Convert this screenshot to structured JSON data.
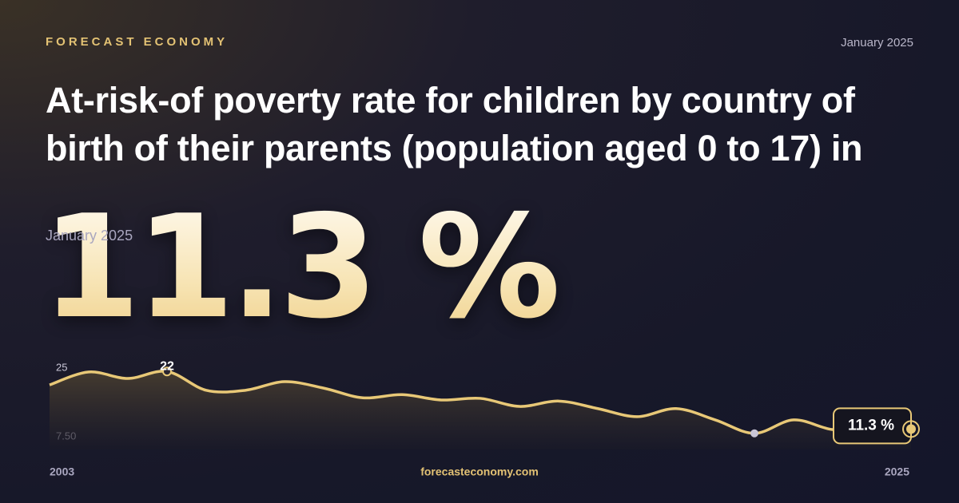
{
  "brand": "FORECAST ECONOMY",
  "date": "January 2025",
  "footer": "forecasteconomy.com",
  "chart_data": {
    "type": "line",
    "title": "At-risk-of poverty rate for children by country of birth of their parents (population aged 0 to 17) in",
    "x": [
      2003,
      2004,
      2005,
      2006,
      2007,
      2008,
      2009,
      2010,
      2011,
      2012,
      2013,
      2014,
      2015,
      2016,
      2017,
      2018,
      2019,
      2020,
      2021,
      2022,
      2023,
      2024,
      2025
    ],
    "values": [
      19.5,
      21.9,
      20.7,
      22,
      18.5,
      18.5,
      20.1,
      18.9,
      17.1,
      17.7,
      16.7,
      17.0,
      15.5,
      16.5,
      15.1,
      13.6,
      15.1,
      13.0,
      10.5,
      13.0,
      11.2,
      11.4,
      11.3
    ],
    "value_labels": [
      null,
      null,
      null,
      "22",
      null,
      null,
      null,
      null,
      null,
      null,
      null,
      null,
      null,
      null,
      null,
      null,
      null,
      null,
      null,
      null,
      null,
      null,
      "11.3 %"
    ],
    "color": "#e8c877",
    "xlim": [
      2003,
      2025
    ],
    "xticks": [
      2003,
      2025
    ],
    "ylim": [
      7.5,
      25
    ],
    "yticks": [
      25,
      {
        "value": 7.5,
        "label": "7.50"
      }
    ]
  }
}
